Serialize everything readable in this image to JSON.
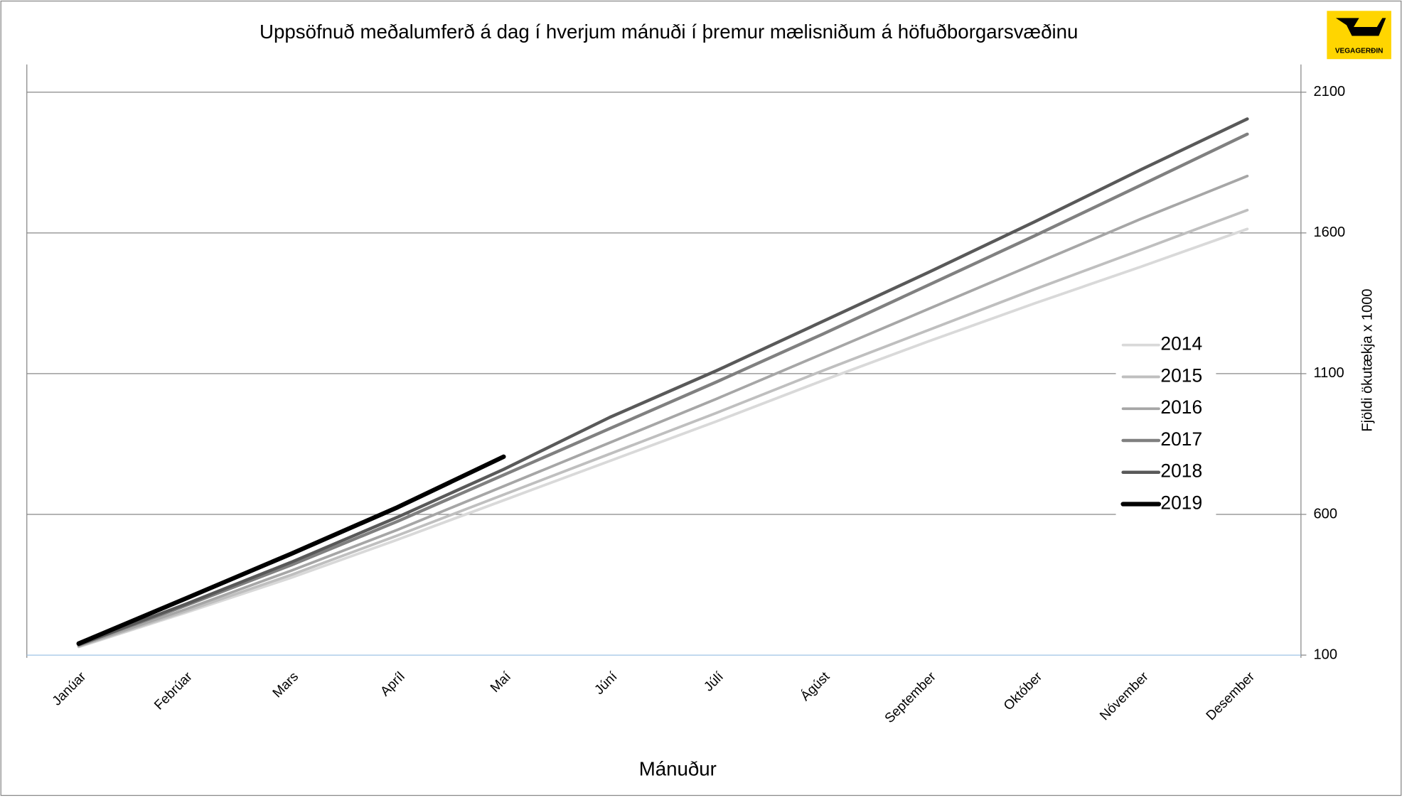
{
  "chart_data": {
    "type": "line",
    "title": "Uppsöfnuð meðalumferð á dag í hverjum mánuði í þremur mælisniðum á höfuðborgarsvæðinu",
    "x_label": "Mánuður",
    "y_label": "Fjöldi ökutækja x 1000",
    "logo_text": "VEGAGERÐIN",
    "categories": [
      "Janúar",
      "Febrúar",
      "Mars",
      "Apríl",
      "Maí",
      "Júní",
      "Júlí",
      "Ágúst",
      "September",
      "Október",
      "Nóvember",
      "Desember"
    ],
    "ylim": [
      100,
      2100
    ],
    "yticks": [
      100,
      600,
      1100,
      1600,
      2100
    ],
    "y_axis_side": "right",
    "grid": true,
    "legend": "right",
    "series": [
      {
        "name": "2014",
        "color": "#d9d9d9",
        "width": 3,
        "values": [
          129,
          250,
          375,
          510,
          650,
          790,
          930,
          1075,
          1215,
          1350,
          1480,
          1614
        ]
      },
      {
        "name": "2015",
        "color": "#bfbfbf",
        "width": 3,
        "values": [
          131,
          255,
          385,
          525,
          670,
          815,
          960,
          1110,
          1255,
          1400,
          1540,
          1681
        ]
      },
      {
        "name": "2016",
        "color": "#a6a6a6",
        "width": 3,
        "values": [
          133,
          262,
          400,
          545,
          700,
          855,
          1010,
          1170,
          1330,
          1490,
          1650,
          1802
        ]
      },
      {
        "name": "2017",
        "color": "#808080",
        "width": 3.5,
        "values": [
          136,
          275,
          420,
          575,
          740,
          905,
          1070,
          1240,
          1415,
          1590,
          1770,
          1951
        ]
      },
      {
        "name": "2018",
        "color": "#595959",
        "width": 3.5,
        "values": [
          137,
          280,
          430,
          590,
          760,
          945,
          1110,
          1285,
          1460,
          1640,
          1825,
          2005
        ]
      },
      {
        "name": "2019",
        "color": "#000000",
        "width": 5,
        "values": [
          141,
          300,
          460,
          625,
          805,
          null,
          null,
          null,
          null,
          null,
          null,
          null
        ]
      }
    ]
  }
}
